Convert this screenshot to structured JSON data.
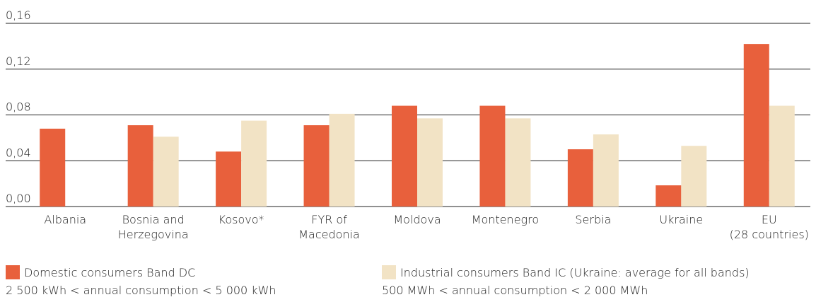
{
  "chart_data": {
    "type": "bar",
    "categories": [
      "Albania",
      "Bosnia and\nHerzegovina",
      "Kosovo*",
      "FYR of\nMacedonia",
      "Moldova",
      "Montenegro",
      "Serbia",
      "Ukraine",
      "EU\n(28 countries)"
    ],
    "series": [
      {
        "name": "Domestic consumers Band DC",
        "note": "2 500 kWh < annual consumption < 5 000 kWh",
        "color": "#e8603c",
        "values": [
          0.068,
          0.071,
          0.048,
          0.071,
          0.088,
          0.088,
          0.05,
          0.0185,
          0.142
        ]
      },
      {
        "name": "Industrial consumers Band IC (Ukraine: average for all bands)",
        "note": "500 MWh < annual consumption < 2 000 MWh",
        "color": "#f2e3c5",
        "values": [
          null,
          0.061,
          0.075,
          0.081,
          0.077,
          0.077,
          0.063,
          0.053,
          0.088
        ]
      }
    ],
    "ylim": [
      0,
      0.16
    ],
    "yticks": [
      {
        "value": 0,
        "label": "0,00"
      },
      {
        "value": 0.04,
        "label": "0,04"
      },
      {
        "value": 0.08,
        "label": "0,08"
      },
      {
        "value": 0.12,
        "label": "0,12"
      },
      {
        "value": 0.16,
        "label": "0,16"
      }
    ],
    "grid": true
  }
}
